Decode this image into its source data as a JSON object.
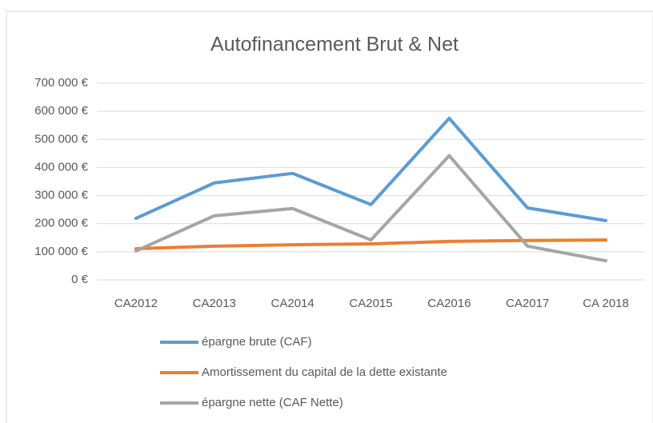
{
  "chart_data": {
    "type": "line",
    "title": "Autofinancement Brut & Net",
    "categories": [
      "CA2012",
      "CA2013",
      "CA2014",
      "CA2015",
      "CA2016",
      "CA2017",
      "CA 2018"
    ],
    "series": [
      {
        "name": "épargne brute (CAF)",
        "color": "#5b9bd5",
        "values": [
          219000,
          345000,
          379000,
          268000,
          575000,
          256000,
          211000
        ]
      },
      {
        "name": "Amortissement du capital de la dette existante",
        "color": "#ed7d31",
        "values": [
          111000,
          120000,
          125000,
          128000,
          137000,
          140000,
          142000
        ]
      },
      {
        "name": "épargne nette (CAF Nette)",
        "color": "#a5a5a5",
        "values": [
          103000,
          228000,
          254000,
          142000,
          442000,
          120000,
          68000
        ]
      }
    ],
    "ylim": [
      0,
      700000
    ],
    "yticks": [
      {
        "value": 0,
        "label": "0 €"
      },
      {
        "value": 100000,
        "label": "100 000 €"
      },
      {
        "value": 200000,
        "label": "200 000 €"
      },
      {
        "value": 300000,
        "label": "300 000 €"
      },
      {
        "value": 400000,
        "label": "400 000 €"
      },
      {
        "value": 500000,
        "label": "500 000 €"
      },
      {
        "value": 600000,
        "label": "600 000 €"
      },
      {
        "value": 700000,
        "label": "700 000 €"
      }
    ],
    "grid": true,
    "legend": "bottom"
  }
}
